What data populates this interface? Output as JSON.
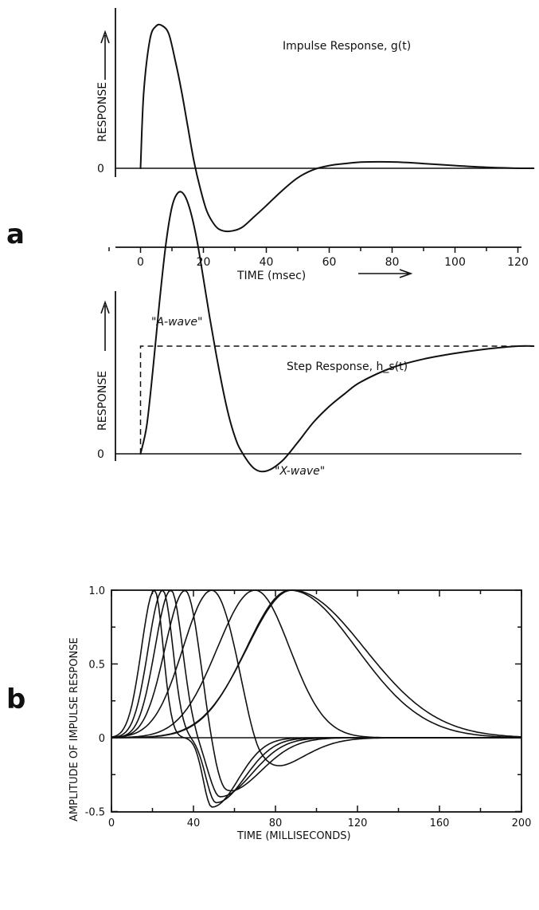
{
  "panel_a_label": "a",
  "panel_b_label": "b",
  "chart_data": [
    {
      "id": "impulse",
      "type": "line",
      "title": "",
      "annotation": "Impulse Response, g(t)",
      "xlabel": "TIME (msec)",
      "ylabel": "RESPONSE",
      "y_zero_label": "0",
      "xlim": [
        -10,
        125
      ],
      "x_ticks": [
        0,
        20,
        40,
        60,
        80,
        100,
        120
      ],
      "x_tick_labels": [
        "0",
        "20",
        "40",
        "60",
        "80",
        "100",
        "120"
      ],
      "ylim": [
        -1.0,
        2.2
      ],
      "series": [
        {
          "x": [
            0,
            1,
            3,
            5,
            7,
            9,
            11,
            13,
            15,
            17,
            19,
            21,
            23,
            25,
            28,
            32,
            36,
            40,
            45,
            50,
            55,
            60,
            65,
            70,
            76,
            82,
            90,
            100,
            110,
            118,
            125
          ],
          "y": [
            0.0,
            1.1,
            1.9,
            2.1,
            2.1,
            1.98,
            1.6,
            1.15,
            0.62,
            0.1,
            -0.3,
            -0.62,
            -0.8,
            -0.9,
            -0.93,
            -0.88,
            -0.72,
            -0.55,
            -0.33,
            -0.14,
            -0.02,
            0.04,
            0.07,
            0.09,
            0.095,
            0.09,
            0.07,
            0.04,
            0.015,
            0.003,
            0.0
          ]
        }
      ]
    },
    {
      "id": "step",
      "type": "line",
      "title": "",
      "annotation": "Step Response, h_s(t)",
      "annotations": [
        "\"A-wave\"",
        "\"X-wave\""
      ],
      "ylabel": "RESPONSE",
      "y_zero_label": "0",
      "xlim": [
        -10,
        125
      ],
      "ylim": [
        -0.5,
        2.4
      ],
      "series": [
        {
          "style": "solid",
          "x": [
            0,
            2,
            4,
            6,
            8,
            10,
            12,
            14,
            16,
            18,
            20,
            22,
            24,
            26,
            28,
            30,
            32,
            36,
            40,
            45,
            50,
            55,
            60,
            65,
            70,
            80,
            90,
            100,
            110,
            120,
            125
          ],
          "y": [
            0.0,
            0.2,
            0.6,
            1.05,
            1.45,
            1.72,
            1.82,
            1.8,
            1.68,
            1.48,
            1.22,
            0.95,
            0.7,
            0.47,
            0.27,
            0.12,
            0.02,
            -0.1,
            -0.12,
            -0.05,
            0.08,
            0.22,
            0.33,
            0.42,
            0.5,
            0.6,
            0.66,
            0.7,
            0.73,
            0.75,
            0.75
          ]
        },
        {
          "style": "dashed",
          "x": [
            0,
            0,
            125
          ],
          "y": [
            0.0,
            0.75,
            0.75
          ]
        }
      ]
    },
    {
      "id": "family",
      "type": "line",
      "title": "",
      "xlabel": "TIME (MILLISECONDS)",
      "ylabel": "AMPLITUDE OF IMPULSE RESPONSE",
      "xlim": [
        0,
        200
      ],
      "ylim": [
        -0.5,
        1.0
      ],
      "x_ticks": [
        0,
        40,
        80,
        120,
        160,
        200
      ],
      "x_tick_labels": [
        "0",
        "40",
        "80",
        "120",
        "160",
        "200"
      ],
      "x_minor_ticks": [
        20,
        60,
        100,
        140,
        180
      ],
      "y_ticks": [
        1.0,
        0.5,
        0,
        -0.5
      ],
      "y_tick_labels": [
        "1.0",
        "0.5",
        "0",
        "-0.5"
      ],
      "y_minor_ticks": [
        0.75,
        0.25,
        -0.25
      ],
      "series": [
        {
          "peak": 21,
          "rise": 9,
          "fall": 6,
          "neg_center": 49,
          "neg_depth": -0.47,
          "neg_width_left": 6,
          "neg_width_right": 18
        },
        {
          "peak": 25,
          "rise": 10,
          "fall": 7,
          "neg_center": 51,
          "neg_depth": -0.44,
          "neg_width_left": 7,
          "neg_width_right": 20
        },
        {
          "peak": 29,
          "rise": 11,
          "fall": 8,
          "neg_center": 53,
          "neg_depth": -0.4,
          "neg_width_left": 8,
          "neg_width_right": 22
        },
        {
          "peak": 36,
          "rise": 14,
          "fall": 10,
          "neg_center": 56,
          "neg_depth": -0.37,
          "neg_width_left": 9,
          "neg_width_right": 24
        },
        {
          "peak": 49,
          "rise": 20,
          "fall": 17,
          "neg_center": 73,
          "neg_depth": -0.24,
          "neg_width_left": 10,
          "neg_width_right": 26
        },
        {
          "peak": 70,
          "rise": 26,
          "fall": 24
        },
        {
          "peak": 87,
          "rise": 30,
          "fall": 46
        },
        {
          "peak": 88,
          "rise": 31,
          "fall": 50
        }
      ]
    }
  ]
}
